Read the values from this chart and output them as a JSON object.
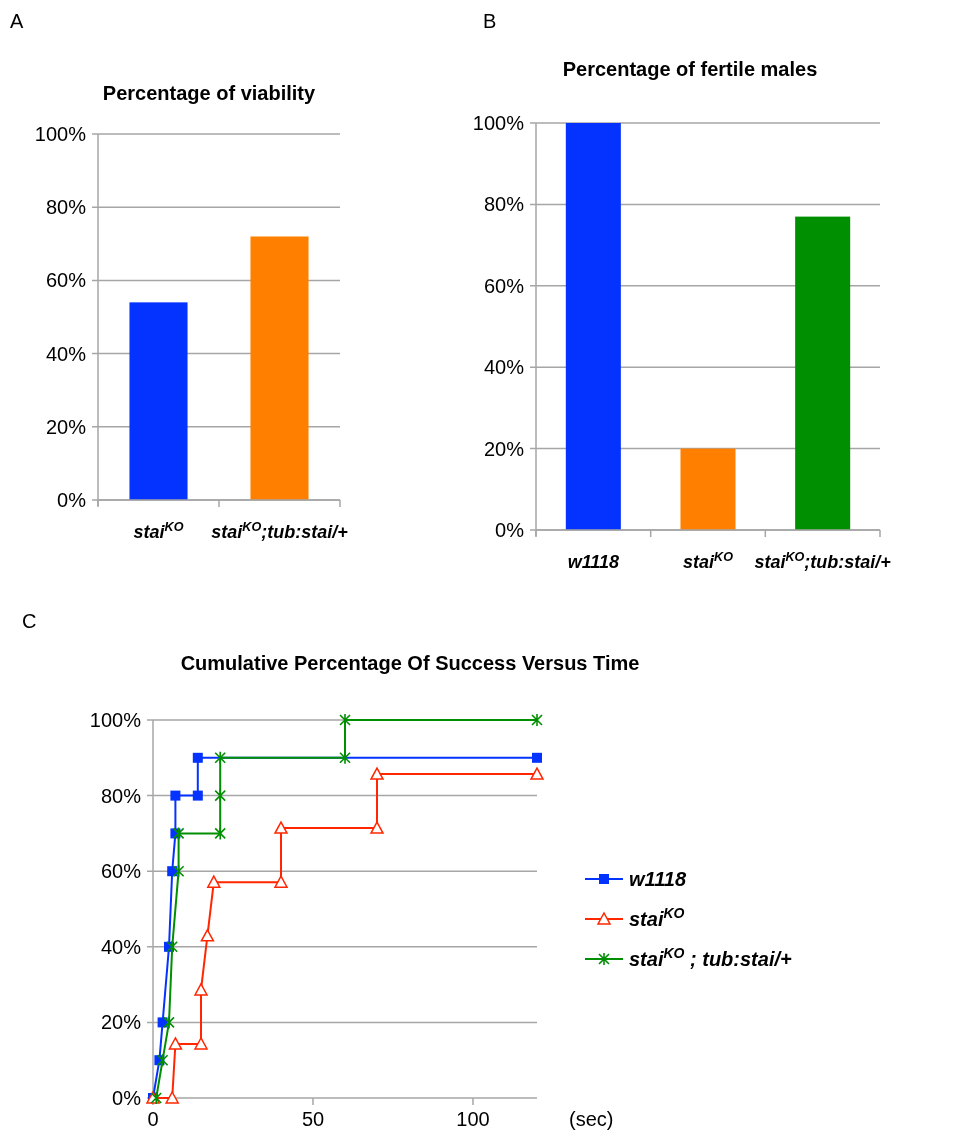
{
  "chart_data": [
    {
      "type": "bar",
      "title": "Percentage of viability",
      "annotations": [
        "A"
      ],
      "categories": [
        "stai$^{KO}$",
        "stai$^{KO}$;tub:stai/+"
      ],
      "values": [
        54,
        72
      ],
      "colors": [
        "#0433ff",
        "#ff8000"
      ],
      "ylim": [
        0,
        100
      ],
      "yticks": [
        {
          "value": 0,
          "label": "0%"
        },
        {
          "value": 20,
          "label": "20%"
        },
        {
          "value": 40,
          "label": "40%"
        },
        {
          "value": 60,
          "label": "60%"
        },
        {
          "value": 80,
          "label": "80%"
        },
        {
          "value": 100,
          "label": "100%"
        }
      ],
      "grid": "y"
    },
    {
      "type": "bar",
      "title": "Percentage of fertile males",
      "annotations": [
        "B"
      ],
      "categories": [
        "w1118",
        "stai$^{KO}$",
        "stai$^{KO}$;tub:stai/+"
      ],
      "values": [
        100,
        20,
        77
      ],
      "colors": [
        "#0433ff",
        "#ff8000",
        "#008f00"
      ],
      "ylim": [
        0,
        100
      ],
      "yticks": [
        {
          "value": 0,
          "label": "0%"
        },
        {
          "value": 20,
          "label": "20%"
        },
        {
          "value": 40,
          "label": "40%"
        },
        {
          "value": 60,
          "label": "60%"
        },
        {
          "value": 80,
          "label": "80%"
        },
        {
          "value": 100,
          "label": "100%"
        }
      ],
      "grid": "y"
    },
    {
      "type": "line",
      "title": "Cumulative Percentage Of Success Versus Time",
      "annotations": [
        "C"
      ],
      "xlabel": "(sec)",
      "xlim": [
        0,
        120
      ],
      "xticks": [
        0,
        50,
        100
      ],
      "ylim": [
        0,
        100
      ],
      "yticks": [
        {
          "value": 0,
          "label": "0%"
        },
        {
          "value": 20,
          "label": "20%"
        },
        {
          "value": 40,
          "label": "40%"
        },
        {
          "value": 60,
          "label": "60%"
        },
        {
          "value": 80,
          "label": "80%"
        },
        {
          "value": 100,
          "label": "100%"
        }
      ],
      "grid": "y",
      "legend": "right",
      "series": [
        {
          "name": "w1118",
          "color": "#0433ff",
          "marker": "square",
          "x": [
            0,
            2,
            3,
            5,
            6,
            7,
            7,
            14,
            14,
            120
          ],
          "values": [
            0,
            10,
            20,
            40,
            60,
            70,
            80,
            80,
            90,
            90
          ]
        },
        {
          "name": "stai$^{KO}$",
          "color": "#ff2600",
          "marker": "triangle",
          "x": [
            0,
            6,
            7,
            15,
            15,
            17,
            19,
            40,
            40,
            70,
            70,
            120
          ],
          "values": [
            0,
            0,
            14.3,
            14.3,
            28.6,
            42.9,
            57.1,
            57.1,
            71.4,
            71.4,
            85.7,
            85.7
          ]
        },
        {
          "name": "stai$^{KO}$ ; tub:stai/+",
          "color": "#008f00",
          "marker": "cross",
          "x": [
            1,
            3,
            5,
            6,
            8,
            8,
            21,
            21,
            21,
            60,
            60,
            120
          ],
          "values": [
            0,
            10,
            20,
            40,
            60,
            70,
            70,
            80,
            90,
            90,
            100,
            100
          ]
        }
      ]
    }
  ]
}
